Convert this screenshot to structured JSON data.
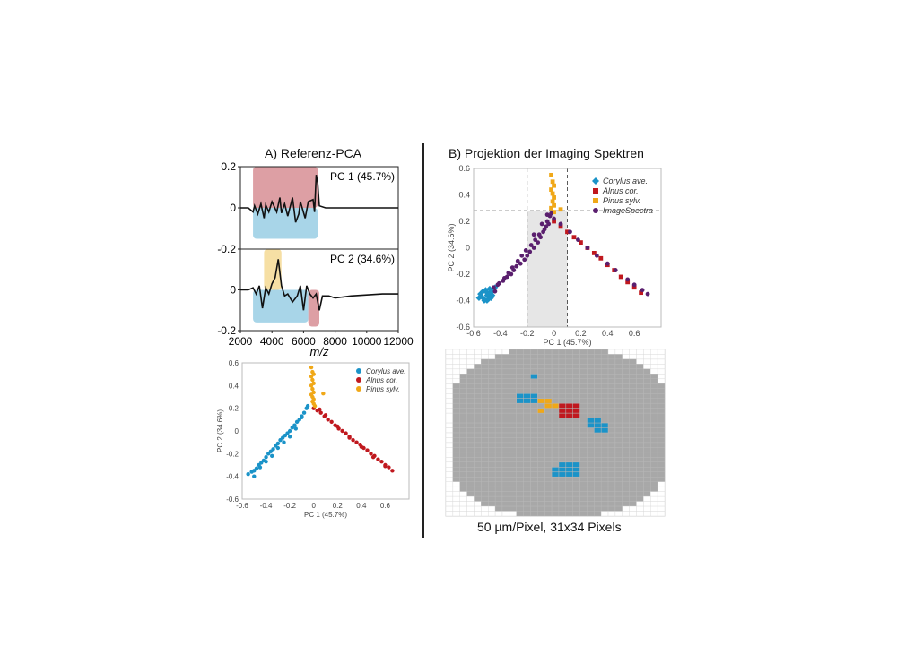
{
  "panel_a": {
    "title": "A) Referenz-PCA"
  },
  "panel_b": {
    "title": "B) Projektion der Imaging Spektren",
    "caption": "50 µm/Pixel, 31x34 Pixels"
  },
  "colors": {
    "corylus": "#1b93c8",
    "alnus": "#c0181e",
    "pinus": "#f0a818",
    "image": "#5a1f6e",
    "grey": "#a8a8a8"
  },
  "chart_data": [
    {
      "type": "line",
      "title": "A) Referenz-PCA",
      "xlabel": "m/z",
      "xlim": [
        2000,
        12000
      ],
      "ylim": [
        -0.2,
        0.2
      ],
      "xticks": [
        "2000",
        "4000",
        "6000",
        "8000",
        "10000",
        "12000"
      ],
      "yticks": [
        "0.2",
        "0",
        "-0.2"
      ],
      "series": [
        {
          "name": "PC 1 (45.7%)",
          "x": [
            2000,
            2500,
            2800,
            2900,
            3100,
            3300,
            3500,
            3600,
            3800,
            4000,
            4300,
            4500,
            4600,
            4800,
            5000,
            5300,
            5500,
            5700,
            5800,
            6100,
            6300,
            6600,
            6700,
            6800,
            6900,
            7000,
            7400,
            8000,
            9000,
            10000,
            11000,
            12000
          ],
          "y": [
            0,
            0,
            -0.02,
            0.01,
            -0.03,
            0.02,
            -0.05,
            0.015,
            -0.02,
            0.03,
            -0.02,
            0.05,
            -0.025,
            0.02,
            -0.04,
            0.05,
            -0.07,
            -0.03,
            0.03,
            -0.05,
            0.03,
            0.04,
            -0.02,
            0.16,
            0.12,
            0.01,
            0,
            0,
            0,
            0,
            0,
            0
          ]
        },
        {
          "name": "PC 2 (34.6%)",
          "x": [
            2000,
            2500,
            2800,
            3000,
            3200,
            3400,
            3600,
            3800,
            4000,
            4200,
            4400,
            4600,
            4800,
            5000,
            5300,
            5600,
            5800,
            6000,
            6200,
            6400,
            6600,
            6800,
            7000,
            7200,
            7600,
            8000,
            9000,
            10000,
            11000,
            12000
          ],
          "y": [
            0,
            0,
            0.01,
            -0.02,
            0.02,
            -0.09,
            0.01,
            -0.02,
            0.03,
            0.06,
            0.15,
            0.02,
            -0.03,
            -0.02,
            -0.06,
            -0.03,
            0.02,
            -0.1,
            0.02,
            -0.02,
            -0.04,
            -0.02,
            -0.1,
            -0.03,
            -0.03,
            -0.04,
            -0.03,
            -0.025,
            -0.02,
            -0.02
          ]
        }
      ],
      "highlights": [
        {
          "panel": "PC 1 (45.7%)",
          "x": [
            2800,
            6900
          ],
          "y": [
            0,
            0.2
          ],
          "color": "#d9959a"
        },
        {
          "panel": "PC 1 (45.7%)",
          "x": [
            2800,
            6900
          ],
          "y": [
            -0.15,
            0
          ],
          "color": "#9fd0e6"
        },
        {
          "panel": "PC 2 (34.6%)",
          "x": [
            3500,
            4600
          ],
          "y": [
            0,
            0.2
          ],
          "color": "#f5dc9a"
        },
        {
          "panel": "PC 2 (34.6%)",
          "x": [
            2800,
            6300
          ],
          "y": [
            -0.16,
            0
          ],
          "color": "#9fd0e6"
        },
        {
          "panel": "PC 2 (34.6%)",
          "x": [
            6300,
            7000
          ],
          "y": [
            -0.18,
            0
          ],
          "color": "#d9959a"
        }
      ]
    },
    {
      "type": "scatter",
      "xlabel": "PC 1 (45.7%)",
      "ylabel": "PC 2 (34.6%)",
      "xlim": [
        -0.6,
        0.8
      ],
      "ylim": [
        -0.6,
        0.6
      ],
      "xticks": [
        "-0.6",
        "-0.4",
        "-0.2",
        "0",
        "0.2",
        "0.4",
        "0.6"
      ],
      "yticks": [
        "0.6",
        "0.4",
        "0.2",
        "0",
        "-0.2",
        "-0.4",
        "-0.6"
      ],
      "legend_position": "top-right",
      "series": [
        {
          "name": "Corylus ave.",
          "color": "#1b93c8",
          "x": [
            -0.55,
            -0.52,
            -0.5,
            -0.48,
            -0.46,
            -0.44,
            -0.42,
            -0.4,
            -0.38,
            -0.36,
            -0.34,
            -0.32,
            -0.3,
            -0.28,
            -0.26,
            -0.24,
            -0.22,
            -0.2,
            -0.18,
            -0.16,
            -0.14,
            -0.12,
            -0.1,
            -0.08,
            -0.06,
            -0.5,
            -0.45,
            -0.4,
            -0.35,
            -0.3,
            -0.25,
            -0.2,
            -0.15,
            -0.1,
            -0.05
          ],
          "y": [
            -0.38,
            -0.36,
            -0.35,
            -0.33,
            -0.3,
            -0.28,
            -0.26,
            -0.23,
            -0.2,
            -0.18,
            -0.16,
            -0.13,
            -0.11,
            -0.08,
            -0.06,
            -0.04,
            -0.02,
            0.0,
            0.03,
            0.05,
            0.08,
            0.1,
            0.13,
            0.16,
            0.2,
            -0.4,
            -0.32,
            -0.27,
            -0.22,
            -0.15,
            -0.1,
            -0.05,
            0.02,
            0.12,
            0.22
          ]
        },
        {
          "name": "Alnus cor.",
          "color": "#c0181e",
          "x": [
            0.0,
            0.03,
            0.06,
            0.09,
            0.12,
            0.15,
            0.18,
            0.21,
            0.24,
            0.27,
            0.3,
            0.33,
            0.36,
            0.39,
            0.42,
            0.45,
            0.48,
            0.51,
            0.54,
            0.57,
            0.6,
            0.63,
            0.66,
            0.05,
            0.1,
            0.2,
            0.3,
            0.4,
            0.5,
            0.6
          ],
          "y": [
            0.2,
            0.18,
            0.16,
            0.13,
            0.1,
            0.08,
            0.05,
            0.02,
            0.0,
            -0.02,
            -0.05,
            -0.08,
            -0.1,
            -0.12,
            -0.15,
            -0.17,
            -0.2,
            -0.22,
            -0.25,
            -0.27,
            -0.3,
            -0.32,
            -0.35,
            0.19,
            0.14,
            0.04,
            -0.06,
            -0.14,
            -0.23,
            -0.31
          ]
        },
        {
          "name": "Pinus sylv.",
          "color": "#f0a818",
          "x": [
            -0.02,
            -0.01,
            0.0,
            -0.02,
            -0.01,
            0.0,
            -0.02,
            -0.01,
            0.0,
            -0.02,
            -0.01,
            0.0,
            -0.01,
            0.0,
            0.01,
            0.08
          ],
          "y": [
            0.56,
            0.52,
            0.5,
            0.48,
            0.45,
            0.42,
            0.4,
            0.37,
            0.34,
            0.32,
            0.3,
            0.28,
            0.26,
            0.24,
            0.22,
            0.33
          ]
        }
      ]
    },
    {
      "type": "scatter",
      "xlabel": "PC 1 (45.7%)",
      "ylabel": "PC 2 (34.6%)",
      "xlim": [
        -0.6,
        0.8
      ],
      "ylim": [
        -0.6,
        0.6
      ],
      "xticks": [
        "-0.6",
        "-0.4",
        "-0.2",
        "0",
        "0.2",
        "0.4",
        "0.6"
      ],
      "yticks": [
        "0.6",
        "0.4",
        "0.2",
        "0",
        "-0.2",
        "-0.4",
        "-0.6"
      ],
      "legend_position": "top-right",
      "reference_lines": {
        "x": [
          -0.2,
          0.1
        ],
        "y": [
          0.28
        ]
      },
      "series": [
        {
          "name": "Corylus ave.",
          "color": "#1b93c8",
          "marker": "diamond",
          "x": [
            -0.56,
            -0.54,
            -0.52,
            -0.5,
            -0.49,
            -0.48,
            -0.47,
            -0.46,
            -0.55,
            -0.53,
            -0.51,
            -0.5,
            -0.48,
            -0.46,
            -0.44,
            -0.52,
            -0.5,
            -0.47
          ],
          "y": [
            -0.38,
            -0.37,
            -0.4,
            -0.36,
            -0.39,
            -0.34,
            -0.37,
            -0.33,
            -0.35,
            -0.33,
            -0.32,
            -0.4,
            -0.31,
            -0.36,
            -0.3,
            -0.39,
            -0.34,
            -0.38
          ]
        },
        {
          "name": "Alnus cor.",
          "color": "#c0181e",
          "marker": "square",
          "x": [
            0.0,
            0.05,
            0.1,
            0.15,
            0.2,
            0.25,
            0.3,
            0.35,
            0.4,
            0.45,
            0.5,
            0.55,
            0.6,
            0.65
          ],
          "y": [
            0.2,
            0.16,
            0.12,
            0.08,
            0.04,
            0.0,
            -0.04,
            -0.08,
            -0.13,
            -0.17,
            -0.22,
            -0.26,
            -0.3,
            -0.34
          ]
        },
        {
          "name": "Pinus sylv.",
          "color": "#f0a818",
          "marker": "square",
          "x": [
            -0.02,
            -0.01,
            0.0,
            -0.02,
            -0.01,
            0.0,
            -0.01,
            0.0,
            -0.02,
            0.0,
            0.05
          ],
          "y": [
            0.55,
            0.5,
            0.47,
            0.44,
            0.41,
            0.38,
            0.35,
            0.32,
            0.3,
            0.27,
            0.29
          ]
        },
        {
          "name": "ImageSpectra",
          "color": "#5a1f6e",
          "marker": "circle",
          "x": [
            -0.45,
            -0.42,
            -0.38,
            -0.35,
            -0.32,
            -0.3,
            -0.28,
            -0.25,
            -0.22,
            -0.2,
            -0.18,
            -0.15,
            -0.12,
            -0.1,
            -0.08,
            -0.06,
            -0.05,
            -0.03,
            -0.02,
            0.0,
            -0.04,
            -0.07,
            -0.11,
            -0.14,
            -0.17,
            -0.21,
            -0.24,
            -0.27,
            -0.31,
            -0.34,
            -0.37,
            -0.41,
            -0.44,
            0.05,
            0.12,
            0.18,
            0.25,
            0.32,
            0.4,
            0.46,
            0.55,
            0.6,
            0.66,
            0.7,
            -0.15,
            -0.09,
            -0.05
          ],
          "y": [
            -0.3,
            -0.28,
            -0.25,
            -0.22,
            -0.2,
            -0.17,
            -0.14,
            -0.12,
            -0.09,
            -0.06,
            -0.03,
            0.0,
            0.04,
            0.08,
            0.12,
            0.16,
            0.2,
            0.24,
            0.26,
            0.22,
            0.18,
            0.14,
            0.1,
            0.06,
            0.02,
            -0.02,
            -0.06,
            -0.1,
            -0.15,
            -0.19,
            -0.23,
            -0.27,
            -0.33,
            0.18,
            0.12,
            0.06,
            0.0,
            -0.06,
            -0.12,
            -0.17,
            -0.24,
            -0.28,
            -0.32,
            -0.35,
            0.1,
            0.18,
            0.25
          ]
        }
      ]
    },
    {
      "type": "heatmap",
      "cols": 31,
      "rows": 34,
      "legend": [
        "grey = ImageSpectra",
        "blue = Corylus ave.",
        "red = Alnus cor.",
        "yellow = Pinus sylv."
      ],
      "row_spans": [
        [
          9,
          22
        ],
        [
          7,
          24
        ],
        [
          5,
          26
        ],
        [
          4,
          27
        ],
        [
          3,
          28
        ],
        [
          2,
          29
        ],
        [
          2,
          29
        ],
        [
          1,
          30
        ],
        [
          1,
          30
        ],
        [
          1,
          30
        ],
        [
          1,
          30
        ],
        [
          1,
          30
        ],
        [
          1,
          30
        ],
        [
          1,
          30
        ],
        [
          1,
          30
        ],
        [
          1,
          30
        ],
        [
          1,
          30
        ],
        [
          1,
          30
        ],
        [
          1,
          30
        ],
        [
          1,
          30
        ],
        [
          1,
          30
        ],
        [
          1,
          30
        ],
        [
          1,
          30
        ],
        [
          1,
          30
        ],
        [
          1,
          30
        ],
        [
          1,
          30
        ],
        [
          1,
          30
        ],
        [
          2,
          29
        ],
        [
          2,
          29
        ],
        [
          3,
          28
        ],
        [
          4,
          27
        ],
        [
          5,
          26
        ],
        [
          7,
          24
        ],
        [
          10,
          21
        ]
      ],
      "cells": [
        {
          "c": 12,
          "r": 5,
          "v": "corylus"
        },
        {
          "c": 10,
          "r": 9,
          "v": "corylus"
        },
        {
          "c": 11,
          "r": 9,
          "v": "corylus"
        },
        {
          "c": 12,
          "r": 9,
          "v": "corylus"
        },
        {
          "c": 10,
          "r": 10,
          "v": "corylus"
        },
        {
          "c": 11,
          "r": 10,
          "v": "corylus"
        },
        {
          "c": 12,
          "r": 10,
          "v": "corylus"
        },
        {
          "c": 13,
          "r": 10,
          "v": "pinus"
        },
        {
          "c": 14,
          "r": 10,
          "v": "pinus"
        },
        {
          "c": 14,
          "r": 11,
          "v": "pinus"
        },
        {
          "c": 15,
          "r": 11,
          "v": "pinus"
        },
        {
          "c": 13,
          "r": 12,
          "v": "pinus"
        },
        {
          "c": 16,
          "r": 11,
          "v": "alnus"
        },
        {
          "c": 17,
          "r": 11,
          "v": "alnus"
        },
        {
          "c": 18,
          "r": 11,
          "v": "alnus"
        },
        {
          "c": 16,
          "r": 12,
          "v": "alnus"
        },
        {
          "c": 17,
          "r": 12,
          "v": "alnus"
        },
        {
          "c": 18,
          "r": 12,
          "v": "alnus"
        },
        {
          "c": 16,
          "r": 13,
          "v": "alnus"
        },
        {
          "c": 17,
          "r": 13,
          "v": "alnus"
        },
        {
          "c": 18,
          "r": 13,
          "v": "alnus"
        },
        {
          "c": 20,
          "r": 14,
          "v": "corylus"
        },
        {
          "c": 21,
          "r": 14,
          "v": "corylus"
        },
        {
          "c": 20,
          "r": 15,
          "v": "corylus"
        },
        {
          "c": 21,
          "r": 15,
          "v": "corylus"
        },
        {
          "c": 22,
          "r": 15,
          "v": "corylus"
        },
        {
          "c": 21,
          "r": 16,
          "v": "corylus"
        },
        {
          "c": 22,
          "r": 16,
          "v": "corylus"
        },
        {
          "c": 16,
          "r": 23,
          "v": "corylus"
        },
        {
          "c": 17,
          "r": 23,
          "v": "corylus"
        },
        {
          "c": 18,
          "r": 23,
          "v": "corylus"
        },
        {
          "c": 15,
          "r": 24,
          "v": "corylus"
        },
        {
          "c": 16,
          "r": 24,
          "v": "corylus"
        },
        {
          "c": 17,
          "r": 24,
          "v": "corylus"
        },
        {
          "c": 18,
          "r": 24,
          "v": "corylus"
        },
        {
          "c": 15,
          "r": 25,
          "v": "corylus"
        },
        {
          "c": 16,
          "r": 25,
          "v": "corylus"
        },
        {
          "c": 17,
          "r": 25,
          "v": "corylus"
        },
        {
          "c": 18,
          "r": 25,
          "v": "corylus"
        }
      ]
    }
  ]
}
